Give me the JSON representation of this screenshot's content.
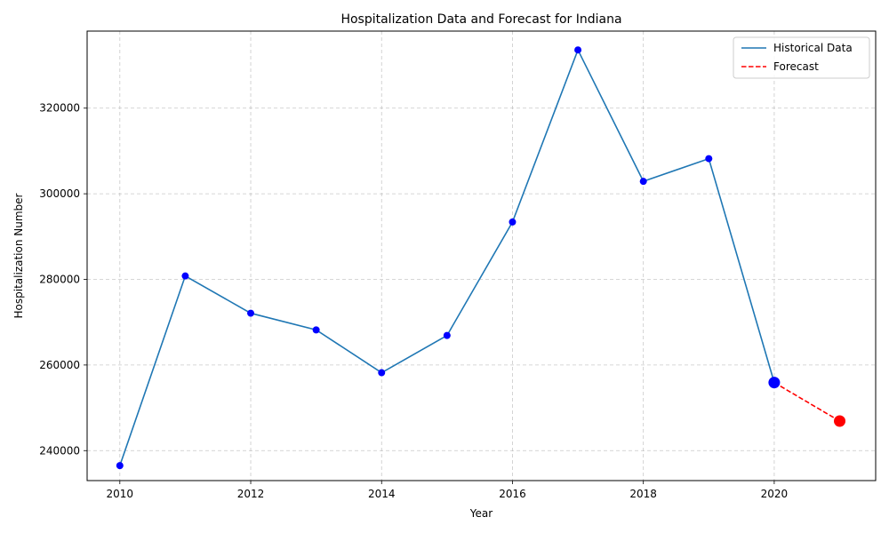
{
  "chart_data": {
    "type": "line",
    "title": "Hospitalization Data and Forecast for Indiana",
    "xlabel": "Year",
    "ylabel": "Hospitalization Number",
    "xlim": [
      2009.5,
      2021.55
    ],
    "ylim": [
      233000,
      338000
    ],
    "x_ticks": [
      2010,
      2012,
      2014,
      2016,
      2018,
      2020
    ],
    "y_ticks": [
      240000,
      260000,
      280000,
      300000,
      320000
    ],
    "grid": true,
    "legend": "top-right",
    "series": [
      {
        "name": "Historical Data",
        "color": "#1f77b4",
        "marker_color": "#0000ff",
        "style": "solid",
        "x": [
          2010,
          2011,
          2012,
          2013,
          2014,
          2015,
          2016,
          2017,
          2018,
          2019,
          2020
        ],
        "y": [
          236500,
          280800,
          272100,
          268200,
          258200,
          266900,
          293400,
          333600,
          302900,
          308200,
          255900
        ]
      },
      {
        "name": "Forecast",
        "color": "#ff0000",
        "marker_color": "#ff0000",
        "style": "dashed",
        "x": [
          2020,
          2021
        ],
        "y": [
          255900,
          246900
        ]
      }
    ]
  }
}
